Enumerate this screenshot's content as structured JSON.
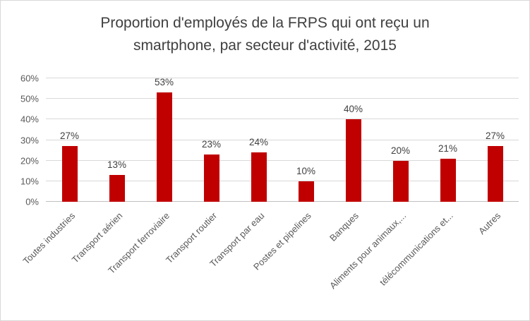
{
  "title": {
    "line1": "Proportion d'employés de la FRPS qui ont reçu un",
    "line2": "smartphone, par secteur d'activité, 2015"
  },
  "chart_data": {
    "type": "bar",
    "title": "Proportion d'employés de la FRPS qui ont reçu un smartphone, par secteur d'activité, 2015",
    "categories": [
      "Toutes industries",
      "Transport aérien",
      "Transport ferroviaire",
      "Transport routier",
      "Transport par eau",
      "Postes et pipelines",
      "Banques",
      "Aliments pour animaux,...",
      "télécommunications et...",
      "Autres"
    ],
    "values": [
      27,
      13,
      53,
      23,
      24,
      10,
      40,
      20,
      21,
      27
    ],
    "data_labels": [
      "27%",
      "13%",
      "53%",
      "23%",
      "24%",
      "10%",
      "40%",
      "20%",
      "21%",
      "27%"
    ],
    "xlabel": "",
    "ylabel": "",
    "ylim": [
      0,
      60
    ],
    "yticks": [
      0,
      10,
      20,
      30,
      40,
      50,
      60
    ],
    "ytick_labels": [
      "0%",
      "10%",
      "20%",
      "30%",
      "40%",
      "50%",
      "60%"
    ],
    "grid": "horizontal",
    "legend": "none",
    "bar_color": "#c00000"
  }
}
